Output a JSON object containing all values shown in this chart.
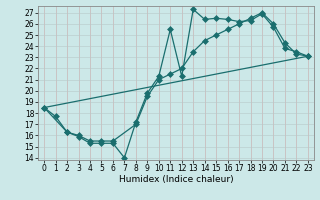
{
  "xlabel": "Humidex (Indice chaleur)",
  "bg_color": "#cce8e8",
  "line_color": "#1a6e6e",
  "grid_color": "#b0cccc",
  "xlim": [
    -0.5,
    23.5
  ],
  "ylim": [
    13.8,
    27.6
  ],
  "yticks": [
    14,
    15,
    16,
    17,
    18,
    19,
    20,
    21,
    22,
    23,
    24,
    25,
    26,
    27
  ],
  "xticks": [
    0,
    1,
    2,
    3,
    4,
    5,
    6,
    7,
    8,
    9,
    10,
    11,
    12,
    13,
    14,
    15,
    16,
    17,
    18,
    19,
    20,
    21,
    22,
    23
  ],
  "line1_x": [
    0,
    1,
    2,
    3,
    4,
    5,
    6,
    7,
    8,
    9,
    10,
    11,
    12,
    13,
    14,
    15,
    16,
    17,
    18,
    19,
    20,
    21,
    22,
    23
  ],
  "line1_y": [
    18.5,
    17.7,
    16.3,
    15.9,
    15.3,
    15.3,
    15.3,
    14.0,
    17.2,
    19.8,
    21.3,
    25.5,
    21.3,
    27.3,
    26.4,
    26.5,
    26.4,
    26.2,
    26.3,
    26.9,
    25.7,
    23.8,
    23.5,
    23.1
  ],
  "line2_x": [
    0,
    2,
    3,
    4,
    5,
    6,
    8,
    9,
    10,
    11,
    12,
    13,
    14,
    15,
    16,
    17,
    18,
    19,
    20,
    21,
    22,
    23
  ],
  "line2_y": [
    18.5,
    16.3,
    16.0,
    15.5,
    15.5,
    15.5,
    17.0,
    19.5,
    21.0,
    21.5,
    22.0,
    23.5,
    24.5,
    25.0,
    25.5,
    26.0,
    26.5,
    27.0,
    26.0,
    24.3,
    23.3,
    23.1
  ],
  "line3_x": [
    0,
    23
  ],
  "line3_y": [
    18.5,
    23.1
  ],
  "marker_size": 3,
  "linewidth": 0.9,
  "tick_fontsize": 5.5,
  "xlabel_fontsize": 6.5
}
